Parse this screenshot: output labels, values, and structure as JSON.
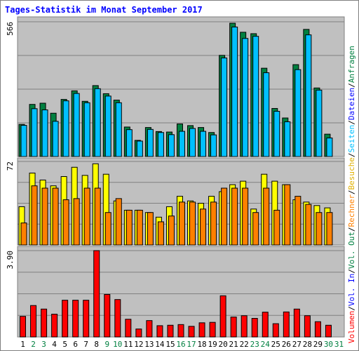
{
  "chart_data": {
    "type": "bar",
    "title": "Tages-Statistik im Monat September 2017",
    "x": [
      1,
      2,
      3,
      4,
      5,
      6,
      7,
      8,
      9,
      10,
      11,
      12,
      13,
      14,
      15,
      16,
      17,
      18,
      19,
      20,
      21,
      22,
      23,
      24,
      25,
      26,
      27,
      28,
      29,
      30,
      31
    ],
    "weekend_days": [
      2,
      3,
      9,
      10,
      16,
      17,
      23,
      24,
      30,
      31
    ],
    "weekend_color": "#008040",
    "weekday_color": "#000000",
    "panels": [
      {
        "id": "top",
        "ylim": [
          0,
          566
        ],
        "ytick_label": "566",
        "series": [
          {
            "name": "Anfragen",
            "color": "#008040",
            "values": [
              135,
              219,
              224,
              182,
              240,
              276,
              232,
              298,
              264,
              237,
              124,
              68,
              122,
              105,
              103,
              137,
              130,
              122,
              101,
              425,
              560,
              522,
              516,
              371,
              202,
              162,
              386,
              534,
              288,
              94
            ]
          },
          {
            "name": "Seiten",
            "color": "#00c0ff",
            "values": [
              131,
              201,
              196,
              148,
              234,
              265,
              226,
              285,
              254,
              226,
              113,
              65,
              114,
              101,
              92,
              106,
              118,
              106,
              91,
              414,
              544,
              496,
              505,
              352,
              190,
              146,
              365,
              511,
              279,
              78
            ]
          }
        ]
      },
      {
        "id": "middle",
        "ylim": [
          0,
          72
        ],
        "ytick_label": "72",
        "series": [
          {
            "name": "Besuche",
            "color": "#ffff00",
            "values": [
              33,
              62,
              56,
              51,
              59,
              67,
              60,
              70,
              61,
              38,
              30,
              30,
              28,
              24,
              33,
              42,
              38,
              36,
              42,
              46,
              52,
              55,
              31,
              61,
              55,
              52,
              39,
              37,
              34,
              32
            ]
          },
          {
            "name": "Rechner",
            "color": "#ff8000",
            "values": [
              19,
              51,
              49,
              49,
              39,
              40,
              49,
              49,
              28,
              40,
              30,
              30,
              28,
              20,
              25,
              37,
              37,
              31,
              37,
              49,
              49,
              49,
              28,
              49,
              30,
              52,
              42,
              35,
              28,
              28
            ]
          }
        ]
      },
      {
        "id": "bottom",
        "ylim": [
          0,
          3.9
        ],
        "ytick_label": "3.90",
        "series": [
          {
            "name": "Volumen",
            "color": "#ff0000",
            "values": [
              0.93,
              1.42,
              1.26,
              1.03,
              1.66,
              1.66,
              1.66,
              3.9,
              1.92,
              1.69,
              0.8,
              0.36,
              0.74,
              0.51,
              0.53,
              0.56,
              0.48,
              0.64,
              0.66,
              1.86,
              0.9,
              0.96,
              0.84,
              1.12,
              0.6,
              1.13,
              1.26,
              0.96,
              0.69,
              0.53
            ]
          }
        ]
      }
    ],
    "legend_placement": "right-vertical",
    "legend_entries": [
      {
        "text": "Volumen",
        "color": "#ff0000"
      },
      {
        "text": "/",
        "color": "#000000"
      },
      {
        "text": "Vol. In",
        "color": "#0000ff"
      },
      {
        "text": "/",
        "color": "#000000"
      },
      {
        "text": "Vol. Out",
        "color": "#008040"
      },
      {
        "text": "/",
        "color": "#000000"
      },
      {
        "text": "Rechner",
        "color": "#ff8000"
      },
      {
        "text": "/",
        "color": "#000000"
      },
      {
        "text": "Besuche",
        "color": "#e0b000"
      },
      {
        "text": "/",
        "color": "#000000"
      },
      {
        "text": "Seiten",
        "color": "#00c0ff"
      },
      {
        "text": "/",
        "color": "#000000"
      },
      {
        "text": "Dateien",
        "color": "#0000ff"
      },
      {
        "text": "/",
        "color": "#000000"
      },
      {
        "text": "Anfragen",
        "color": "#008040"
      }
    ],
    "grid": true
  }
}
